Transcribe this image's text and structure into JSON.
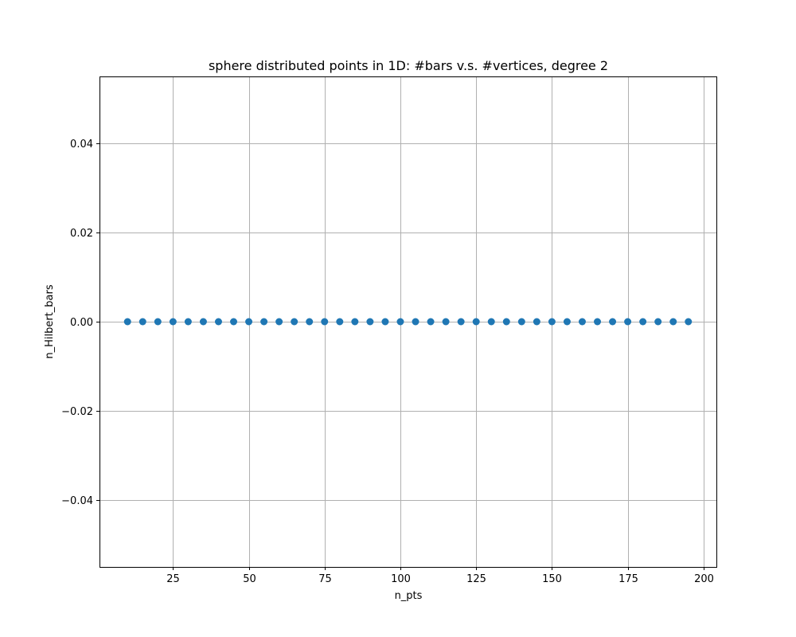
{
  "chart_data": {
    "type": "scatter",
    "title": "sphere distributed points in 1D: #bars v.s. #vertices, degree 2",
    "xlabel": "n_pts",
    "ylabel": "n_Hilbert_bars",
    "xlim": [
      0.75,
      204.25
    ],
    "ylim": [
      -0.055,
      0.055
    ],
    "x_ticks": [
      25,
      50,
      75,
      100,
      125,
      150,
      175,
      200
    ],
    "x_tick_labels": [
      "25",
      "50",
      "75",
      "100",
      "125",
      "150",
      "175",
      "200"
    ],
    "y_ticks": [
      -0.04,
      -0.02,
      0.0,
      0.02,
      0.04
    ],
    "y_tick_labels": [
      "−0.04",
      "−0.02",
      "0.00",
      "0.02",
      "0.04"
    ],
    "grid": true,
    "marker_color": "#1f77b4",
    "series": [
      {
        "x": [
          10,
          15,
          20,
          25,
          30,
          35,
          40,
          45,
          50,
          55,
          60,
          65,
          70,
          75,
          80,
          85,
          90,
          95,
          100,
          105,
          110,
          115,
          120,
          125,
          130,
          135,
          140,
          145,
          150,
          155,
          160,
          165,
          170,
          175,
          180,
          185,
          190,
          195
        ],
        "y": [
          0,
          0,
          0,
          0,
          0,
          0,
          0,
          0,
          0,
          0,
          0,
          0,
          0,
          0,
          0,
          0,
          0,
          0,
          0,
          0,
          0,
          0,
          0,
          0,
          0,
          0,
          0,
          0,
          0,
          0,
          0,
          0,
          0,
          0,
          0,
          0,
          0,
          0
        ]
      }
    ]
  }
}
